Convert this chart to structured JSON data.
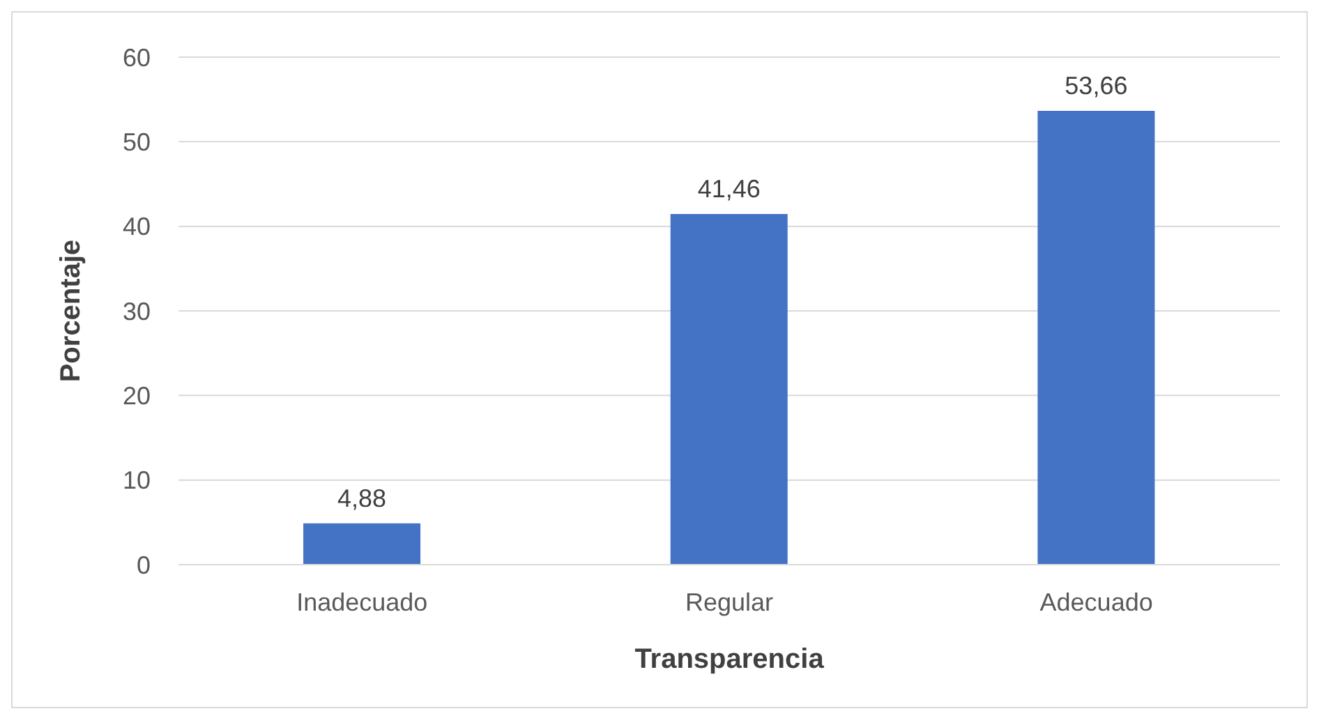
{
  "chart_data": {
    "type": "bar",
    "xlabel": "Transparencia",
    "ylabel": "Porcentaje",
    "categories": [
      "Inadecuado",
      "Regular",
      "Adecuado"
    ],
    "values": [
      4.88,
      41.46,
      53.66
    ],
    "color": "#4472c4",
    "value_labels": [
      "4,88",
      "41,46",
      "53,66"
    ],
    "ylim": [
      0,
      60
    ],
    "yticks": [
      0,
      10,
      20,
      30,
      40,
      50,
      60
    ],
    "grid": "y"
  }
}
